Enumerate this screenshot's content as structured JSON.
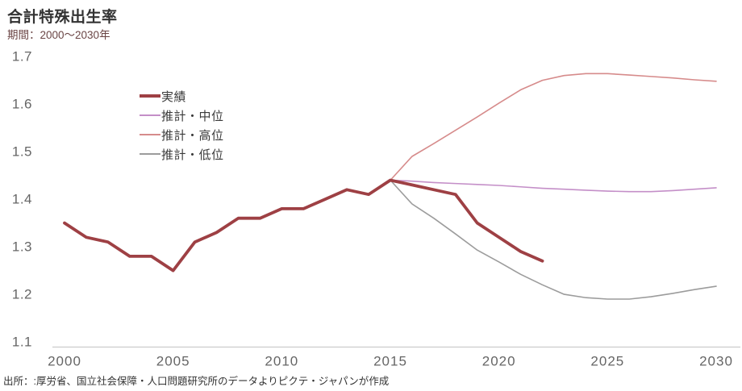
{
  "header": {
    "title": "合計特殊出生率",
    "subtitle": "期間：2000～2030年"
  },
  "source_note": "出所：:厚労省、国立社会保障・人口問題研究所のデータよりピクテ・ジャパンが作成",
  "colors": {
    "actual": "#9e4044",
    "projection_medium": "#c48fc8",
    "projection_high": "#d68b8b",
    "projection_low": "#9c9c9c",
    "axis_line": "#cccccc",
    "tick_text": "#666666",
    "title_text": "#333333",
    "subtitle_text": "#6a4545"
  },
  "legend": {
    "items": [
      {
        "id": "actual",
        "label": "実績"
      },
      {
        "id": "projection-medium",
        "label": "推計・中位"
      },
      {
        "id": "projection-high",
        "label": "推計・高位"
      },
      {
        "id": "projection-low",
        "label": "推計・低位"
      }
    ]
  },
  "chart_data": {
    "type": "line",
    "title": "合計特殊出生率",
    "subtitle": "期間：2000～2030年",
    "xlabel": "",
    "ylabel": "",
    "xlim": [
      2000,
      2030
    ],
    "ylim": [
      1.1,
      1.7
    ],
    "x_ticks": [
      2000,
      2005,
      2010,
      2015,
      2020,
      2025,
      2030
    ],
    "y_ticks": [
      1.1,
      1.2,
      1.3,
      1.4,
      1.5,
      1.6,
      1.7
    ],
    "grid": false,
    "legend_position": "upper-left-inside",
    "series": [
      {
        "name": "実績",
        "color": "#9e4044",
        "width": 3.8,
        "x_start": 2000,
        "values": [
          1.36,
          1.33,
          1.32,
          1.29,
          1.29,
          1.26,
          1.32,
          1.34,
          1.37,
          1.37,
          1.39,
          1.39,
          1.41,
          1.43,
          1.42,
          1.45,
          1.44,
          1.43,
          1.42,
          1.36,
          1.33,
          1.3,
          1.28
        ]
      },
      {
        "name": "推計・中位",
        "color": "#c48fc8",
        "width": 1.6,
        "x_start": 2015,
        "values": [
          1.45,
          1.448,
          1.445,
          1.443,
          1.441,
          1.439,
          1.436,
          1.433,
          1.431,
          1.429,
          1.427,
          1.426,
          1.426,
          1.428,
          1.431,
          1.434
        ]
      },
      {
        "name": "推計・高位",
        "color": "#d68b8b",
        "width": 1.6,
        "x_start": 2015,
        "values": [
          1.45,
          1.5,
          1.527,
          1.555,
          1.583,
          1.612,
          1.64,
          1.66,
          1.67,
          1.674,
          1.674,
          1.671,
          1.668,
          1.665,
          1.661,
          1.658
        ]
      },
      {
        "name": "推計・低位",
        "color": "#9c9c9c",
        "width": 1.6,
        "x_start": 2015,
        "values": [
          1.45,
          1.4,
          1.37,
          1.337,
          1.303,
          1.278,
          1.252,
          1.23,
          1.21,
          1.203,
          1.2,
          1.2,
          1.205,
          1.212,
          1.22,
          1.227
        ]
      }
    ]
  }
}
